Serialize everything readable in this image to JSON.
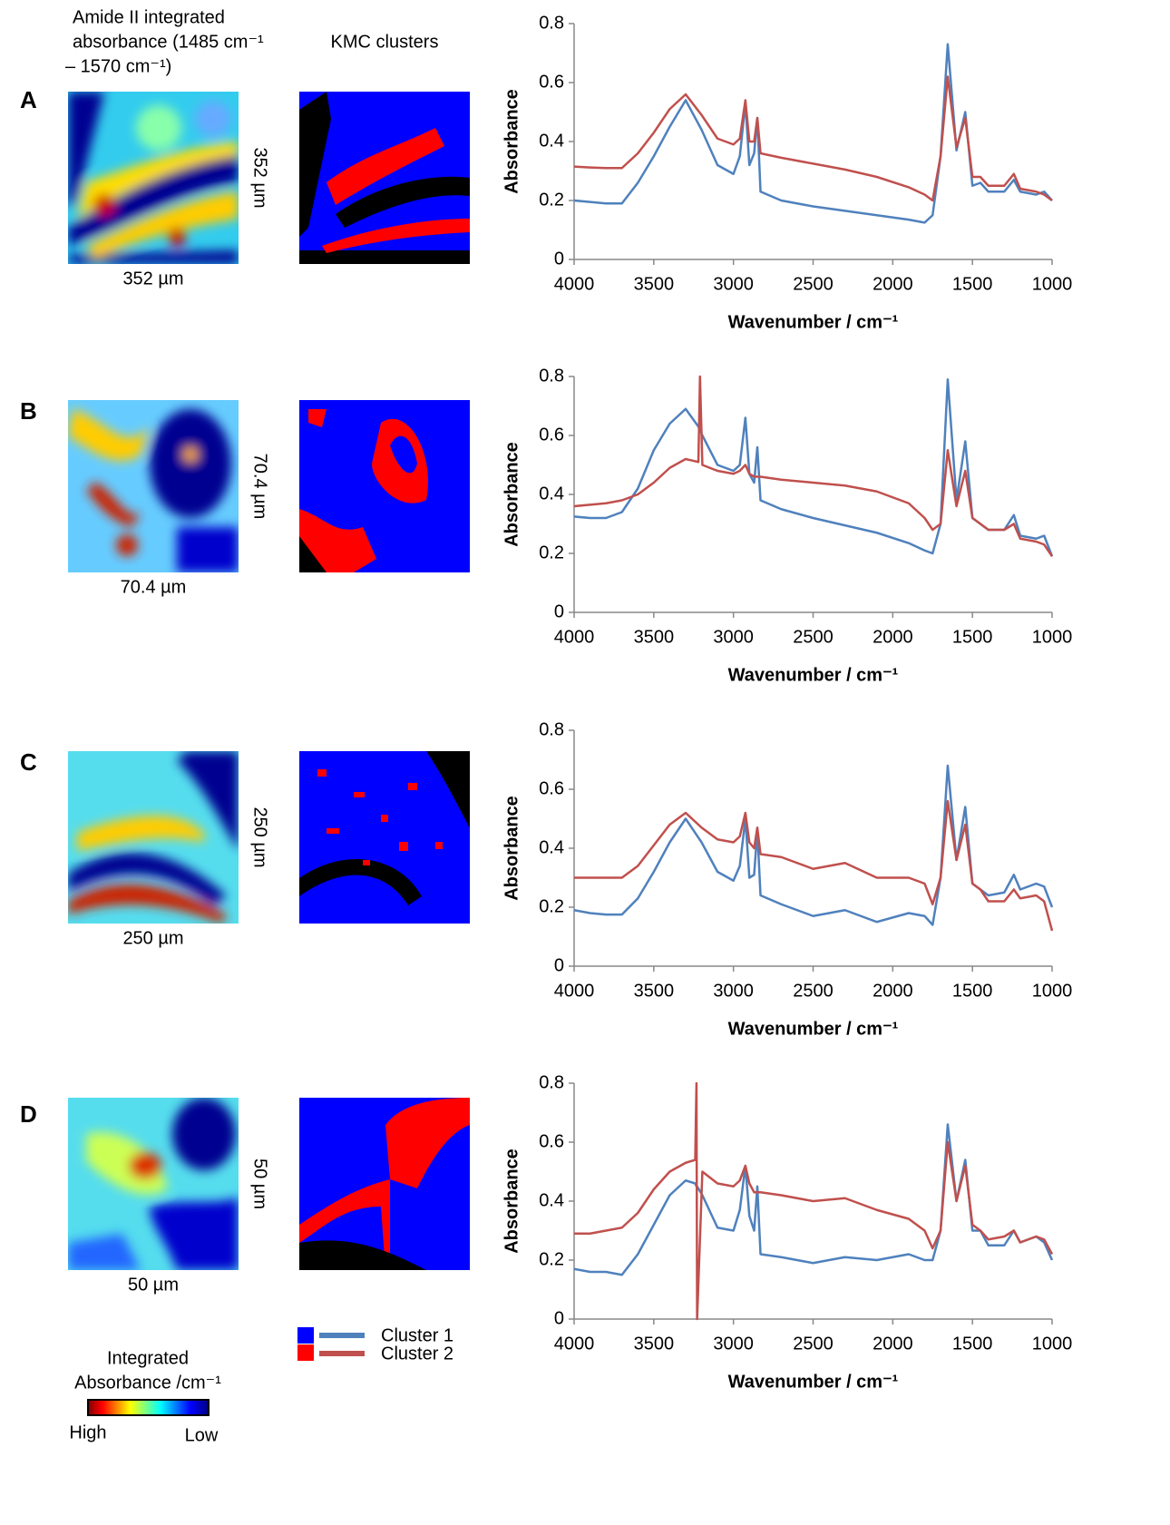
{
  "header": {
    "map_title_lines": [
      "Amide II integrated",
      "absorbance (1485 cm⁻¹",
      "– 1570 cm⁻¹)"
    ],
    "kmc_title": "KMC clusters"
  },
  "panels": [
    {
      "letter": "A",
      "scale_x": "352  µm",
      "scale_y": "352 µm"
    },
    {
      "letter": "B",
      "scale_x": "70.4  µm",
      "scale_y": "70.4 µm"
    },
    {
      "letter": "C",
      "scale_x": "250  µm",
      "scale_y": "250 µm"
    },
    {
      "letter": "D",
      "scale_x": "50  µm",
      "scale_y": "50 µm"
    }
  ],
  "colorbar": {
    "title_lines": [
      "Integrated",
      "Absorbance /cm⁻¹"
    ],
    "high": "High",
    "low": "Low"
  },
  "chart_data": [
    {
      "type": "line",
      "y_label": "Absorbance",
      "x_label": "Wavenumber / cm⁻¹",
      "xlim": [
        4000,
        1000
      ],
      "ylim": [
        0,
        0.8
      ],
      "xticks": [
        4000,
        3500,
        3000,
        2500,
        2000,
        1500,
        1000
      ],
      "yticks": [
        0,
        0.2,
        0.4,
        0.6,
        0.8
      ],
      "x": [
        4000,
        3900,
        3800,
        3700,
        3600,
        3500,
        3400,
        3300,
        3200,
        3100,
        3000,
        2960,
        2925,
        2900,
        2870,
        2850,
        2830,
        2700,
        2500,
        2300,
        2100,
        1900,
        1800,
        1750,
        1700,
        1655,
        1600,
        1545,
        1500,
        1450,
        1400,
        1300,
        1240,
        1200,
        1100,
        1050,
        1000
      ],
      "series": [
        {
          "color": "#4f81bd",
          "values": [
            0.2,
            0.195,
            0.19,
            0.19,
            0.26,
            0.35,
            0.45,
            0.54,
            0.44,
            0.32,
            0.29,
            0.35,
            0.53,
            0.32,
            0.36,
            0.48,
            0.23,
            0.2,
            0.18,
            0.165,
            0.15,
            0.135,
            0.125,
            0.15,
            0.35,
            0.73,
            0.37,
            0.5,
            0.25,
            0.26,
            0.23,
            0.23,
            0.27,
            0.23,
            0.22,
            0.23,
            0.2
          ]
        },
        {
          "color": "#c0504d",
          "values": [
            0.315,
            0.312,
            0.31,
            0.31,
            0.36,
            0.43,
            0.51,
            0.56,
            0.49,
            0.41,
            0.39,
            0.41,
            0.54,
            0.4,
            0.4,
            0.48,
            0.36,
            0.345,
            0.325,
            0.305,
            0.28,
            0.245,
            0.22,
            0.2,
            0.35,
            0.62,
            0.38,
            0.48,
            0.28,
            0.28,
            0.25,
            0.25,
            0.29,
            0.24,
            0.23,
            0.22,
            0.2
          ]
        }
      ]
    },
    {
      "type": "line",
      "y_label": "Absorbance",
      "x_label": "Wavenumber / cm⁻¹",
      "xlim": [
        4000,
        1000
      ],
      "ylim": [
        0,
        0.8
      ],
      "xticks": [
        4000,
        3500,
        3000,
        2500,
        2000,
        1500,
        1000
      ],
      "yticks": [
        0,
        0.2,
        0.4,
        0.6,
        0.8
      ],
      "x": [
        4000,
        3900,
        3800,
        3700,
        3600,
        3500,
        3400,
        3300,
        3220,
        3210,
        3195,
        3100,
        3000,
        2960,
        2925,
        2900,
        2870,
        2850,
        2830,
        2700,
        2500,
        2300,
        2100,
        1900,
        1800,
        1750,
        1700,
        1655,
        1600,
        1545,
        1500,
        1450,
        1400,
        1300,
        1240,
        1200,
        1100,
        1050,
        1000
      ],
      "series": [
        {
          "color": "#4f81bd",
          "values": [
            0.325,
            0.32,
            0.32,
            0.34,
            0.42,
            0.55,
            0.64,
            0.69,
            0.63,
            0.62,
            0.6,
            0.5,
            0.48,
            0.5,
            0.66,
            0.47,
            0.44,
            0.56,
            0.38,
            0.35,
            0.32,
            0.295,
            0.27,
            0.235,
            0.21,
            0.2,
            0.3,
            0.79,
            0.38,
            0.58,
            0.32,
            0.3,
            0.28,
            0.28,
            0.33,
            0.26,
            0.25,
            0.26,
            0.19
          ]
        },
        {
          "color": "#c0504d",
          "values": [
            0.36,
            0.365,
            0.37,
            0.38,
            0.4,
            0.44,
            0.49,
            0.52,
            0.51,
            0.8,
            0.5,
            0.48,
            0.47,
            0.48,
            0.5,
            0.47,
            0.46,
            0.46,
            0.46,
            0.45,
            0.44,
            0.43,
            0.41,
            0.37,
            0.32,
            0.28,
            0.3,
            0.55,
            0.36,
            0.48,
            0.32,
            0.3,
            0.28,
            0.28,
            0.3,
            0.25,
            0.24,
            0.23,
            0.19
          ]
        }
      ]
    },
    {
      "type": "line",
      "y_label": "Absorbance",
      "x_label": "Wavenumber / cm⁻¹",
      "xlim": [
        4000,
        1000
      ],
      "ylim": [
        0,
        0.8
      ],
      "xticks": [
        4000,
        3500,
        3000,
        2500,
        2000,
        1500,
        1000
      ],
      "yticks": [
        0,
        0.2,
        0.4,
        0.6,
        0.8
      ],
      "x": [
        4000,
        3900,
        3800,
        3700,
        3600,
        3500,
        3400,
        3300,
        3200,
        3100,
        3000,
        2960,
        2925,
        2900,
        2870,
        2850,
        2830,
        2700,
        2500,
        2300,
        2100,
        1900,
        1800,
        1750,
        1700,
        1655,
        1600,
        1545,
        1500,
        1450,
        1400,
        1300,
        1240,
        1200,
        1100,
        1050,
        1000
      ],
      "series": [
        {
          "color": "#4f81bd",
          "values": [
            0.19,
            0.18,
            0.175,
            0.175,
            0.23,
            0.32,
            0.42,
            0.5,
            0.42,
            0.32,
            0.29,
            0.34,
            0.5,
            0.3,
            0.31,
            0.46,
            0.24,
            0.21,
            0.17,
            0.19,
            0.15,
            0.18,
            0.17,
            0.14,
            0.3,
            0.68,
            0.36,
            0.54,
            0.28,
            0.26,
            0.24,
            0.25,
            0.31,
            0.26,
            0.28,
            0.27,
            0.2
          ]
        },
        {
          "color": "#c0504d",
          "values": [
            0.3,
            0.3,
            0.3,
            0.3,
            0.34,
            0.41,
            0.48,
            0.52,
            0.47,
            0.43,
            0.42,
            0.44,
            0.52,
            0.42,
            0.4,
            0.47,
            0.38,
            0.37,
            0.33,
            0.35,
            0.3,
            0.3,
            0.28,
            0.21,
            0.3,
            0.56,
            0.36,
            0.48,
            0.28,
            0.26,
            0.22,
            0.22,
            0.26,
            0.23,
            0.24,
            0.22,
            0.12
          ]
        }
      ]
    },
    {
      "type": "line",
      "y_label": "Absorbance",
      "x_label": "Wavenumber / cm⁻¹",
      "xlim": [
        4000,
        1000
      ],
      "ylim": [
        0,
        0.8
      ],
      "xticks": [
        4000,
        3500,
        3000,
        2500,
        2000,
        1500,
        1000
      ],
      "yticks": [
        0,
        0.2,
        0.4,
        0.6,
        0.8
      ],
      "x": [
        4000,
        3900,
        3800,
        3700,
        3600,
        3500,
        3400,
        3300,
        3240,
        3232,
        3228,
        3195,
        3100,
        3000,
        2960,
        2925,
        2900,
        2870,
        2850,
        2830,
        2700,
        2500,
        2300,
        2100,
        1900,
        1800,
        1750,
        1700,
        1655,
        1600,
        1545,
        1500,
        1450,
        1400,
        1300,
        1240,
        1200,
        1100,
        1050,
        1000
      ],
      "series": [
        {
          "name": "Cluster 1",
          "color": "#4f81bd",
          "values": [
            0.17,
            0.16,
            0.16,
            0.15,
            0.22,
            0.32,
            0.42,
            0.47,
            0.46,
            0.45,
            0.45,
            0.42,
            0.31,
            0.3,
            0.37,
            0.52,
            0.35,
            0.3,
            0.45,
            0.22,
            0.21,
            0.19,
            0.21,
            0.2,
            0.22,
            0.2,
            0.2,
            0.3,
            0.66,
            0.4,
            0.54,
            0.3,
            0.3,
            0.25,
            0.25,
            0.3,
            0.26,
            0.28,
            0.26,
            0.2
          ]
        },
        {
          "name": "Cluster 2",
          "color": "#c0504d",
          "values": [
            0.29,
            0.29,
            0.3,
            0.31,
            0.36,
            0.44,
            0.5,
            0.53,
            0.54,
            0.8,
            0,
            0.5,
            0.46,
            0.45,
            0.47,
            0.52,
            0.46,
            0.43,
            0.43,
            0.43,
            0.42,
            0.4,
            0.41,
            0.37,
            0.34,
            0.3,
            0.24,
            0.3,
            0.6,
            0.4,
            0.52,
            0.32,
            0.3,
            0.27,
            0.28,
            0.3,
            0.26,
            0.28,
            0.27,
            0.22
          ]
        }
      ]
    }
  ]
}
